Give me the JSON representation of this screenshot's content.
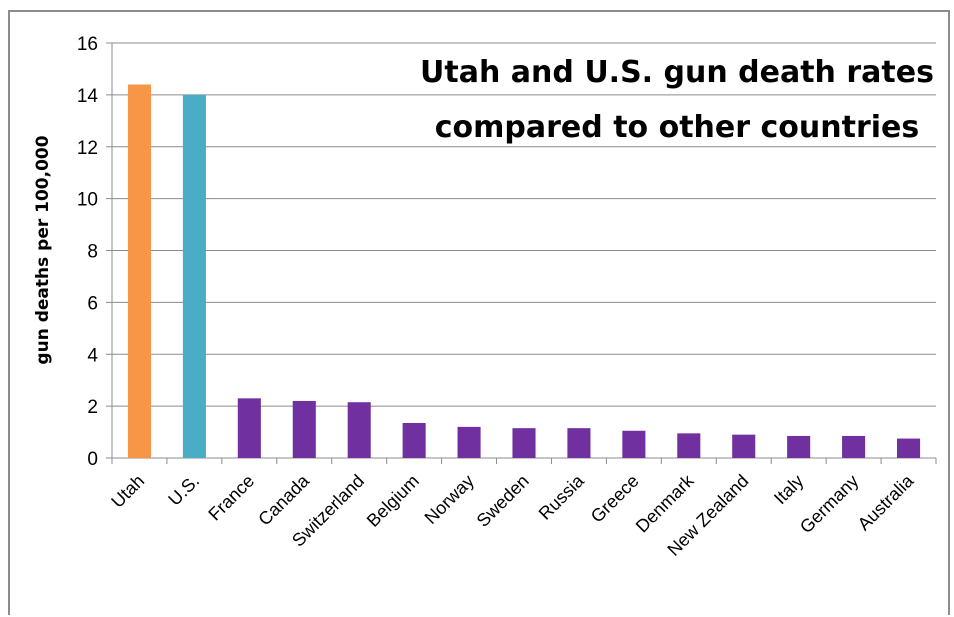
{
  "chart_data": {
    "type": "bar",
    "title_lines": [
      "Utah and U.S. gun death rates",
      "compared to other countries"
    ],
    "xlabel": "",
    "ylabel": "gun deaths per 100,000",
    "ylim": [
      0,
      16
    ],
    "yticks": [
      0,
      2,
      4,
      6,
      8,
      10,
      12,
      14,
      16
    ],
    "grid": true,
    "categories": [
      "Utah",
      "U.S.",
      "France",
      "Canada",
      "Switzerland",
      "Belgium",
      "Norway",
      "Sweden",
      "Russia",
      "Greece",
      "Denmark",
      "New Zealand",
      "Italy",
      "Germany",
      "Australia"
    ],
    "values": [
      14.4,
      14.0,
      2.3,
      2.2,
      2.15,
      1.35,
      1.2,
      1.15,
      1.15,
      1.05,
      0.95,
      0.9,
      0.85,
      0.85,
      0.75
    ],
    "colors": [
      "#f79646",
      "#4bacc6",
      "#7030a0",
      "#7030a0",
      "#7030a0",
      "#7030a0",
      "#7030a0",
      "#7030a0",
      "#7030a0",
      "#7030a0",
      "#7030a0",
      "#7030a0",
      "#7030a0",
      "#7030a0",
      "#7030a0"
    ]
  }
}
